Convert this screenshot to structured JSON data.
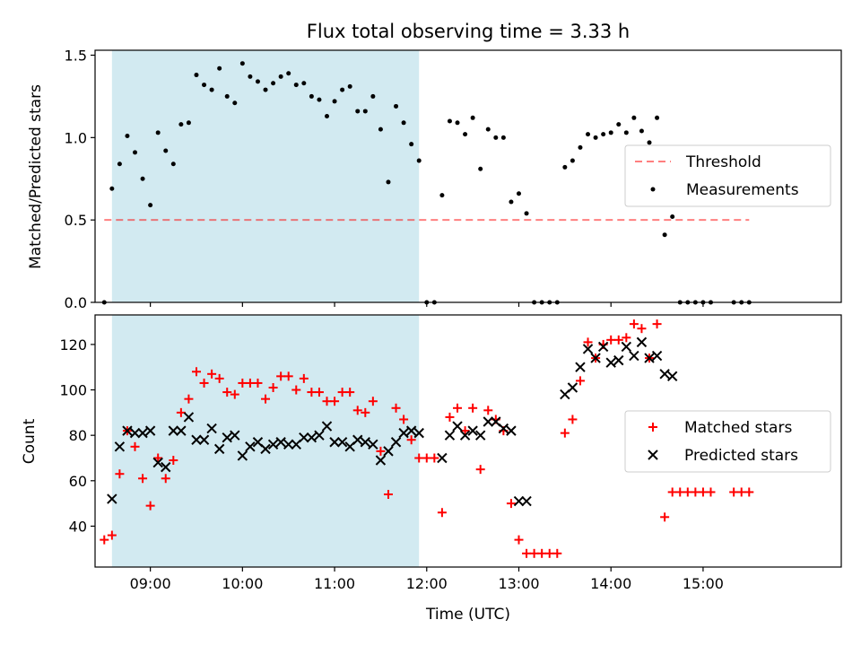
{
  "title": "Flux total observing time = 3.33 h",
  "colors": {
    "band": "#add8e6",
    "threshold": "#ff0000",
    "measurement": "#000000",
    "matched": "#ff0000",
    "predicted": "#000000"
  },
  "chart_data": [
    {
      "type": "scatter",
      "ylabel": "Matched/Predicted stars",
      "ylim": [
        0,
        1.53
      ],
      "xlim": [
        "08:24",
        "16:30"
      ],
      "yticks": [
        "0.0",
        "0.5",
        "1.0",
        "1.5"
      ],
      "shaded_interval": [
        "08:35",
        "11:55"
      ],
      "legend": {
        "position": "center-right",
        "entries": [
          "Threshold",
          "Measurements"
        ]
      },
      "threshold": {
        "name": "Threshold",
        "value": 0.5,
        "x": [
          "08:30",
          "15:30"
        ]
      },
      "series": [
        {
          "name": "Measurements",
          "points": [
            [
              "08:30",
              0.0
            ],
            [
              "08:35",
              0.69
            ],
            [
              "08:40",
              0.84
            ],
            [
              "08:45",
              1.01
            ],
            [
              "08:50",
              0.91
            ],
            [
              "08:55",
              0.75
            ],
            [
              "09:00",
              0.59
            ],
            [
              "09:05",
              1.03
            ],
            [
              "09:10",
              0.92
            ],
            [
              "09:15",
              0.84
            ],
            [
              "09:20",
              1.08
            ],
            [
              "09:25",
              1.09
            ],
            [
              "09:30",
              1.38
            ],
            [
              "09:35",
              1.32
            ],
            [
              "09:40",
              1.29
            ],
            [
              "09:45",
              1.42
            ],
            [
              "09:50",
              1.25
            ],
            [
              "09:55",
              1.21
            ],
            [
              "10:00",
              1.45
            ],
            [
              "10:05",
              1.37
            ],
            [
              "10:10",
              1.34
            ],
            [
              "10:15",
              1.29
            ],
            [
              "10:20",
              1.33
            ],
            [
              "10:25",
              1.37
            ],
            [
              "10:30",
              1.39
            ],
            [
              "10:35",
              1.32
            ],
            [
              "10:40",
              1.33
            ],
            [
              "10:45",
              1.25
            ],
            [
              "10:50",
              1.23
            ],
            [
              "10:55",
              1.13
            ],
            [
              "11:00",
              1.22
            ],
            [
              "11:05",
              1.29
            ],
            [
              "11:10",
              1.31
            ],
            [
              "11:15",
              1.16
            ],
            [
              "11:20",
              1.16
            ],
            [
              "11:25",
              1.25
            ],
            [
              "11:30",
              1.05
            ],
            [
              "11:35",
              0.73
            ],
            [
              "11:40",
              1.19
            ],
            [
              "11:45",
              1.09
            ],
            [
              "11:50",
              0.96
            ],
            [
              "11:55",
              0.86
            ],
            [
              "12:00",
              0.0
            ],
            [
              "12:05",
              0.0
            ],
            [
              "12:10",
              0.65
            ],
            [
              "12:15",
              1.1
            ],
            [
              "12:20",
              1.09
            ],
            [
              "12:25",
              1.02
            ],
            [
              "12:30",
              1.12
            ],
            [
              "12:35",
              0.81
            ],
            [
              "12:40",
              1.05
            ],
            [
              "12:45",
              1.0
            ],
            [
              "12:50",
              1.0
            ],
            [
              "12:55",
              0.61
            ],
            [
              "13:00",
              0.66
            ],
            [
              "13:05",
              0.54
            ],
            [
              "13:10",
              0.0
            ],
            [
              "13:15",
              0.0
            ],
            [
              "13:20",
              0.0
            ],
            [
              "13:25",
              0.0
            ],
            [
              "13:30",
              0.82
            ],
            [
              "13:35",
              0.86
            ],
            [
              "13:40",
              0.94
            ],
            [
              "13:45",
              1.02
            ],
            [
              "13:50",
              1.0
            ],
            [
              "13:55",
              1.02
            ],
            [
              "14:00",
              1.03
            ],
            [
              "14:05",
              1.08
            ],
            [
              "14:10",
              1.03
            ],
            [
              "14:15",
              1.12
            ],
            [
              "14:20",
              1.04
            ],
            [
              "14:25",
              0.97
            ],
            [
              "14:30",
              1.12
            ],
            [
              "14:35",
              0.41
            ],
            [
              "14:40",
              0.52
            ],
            [
              "14:45",
              0.0
            ],
            [
              "14:50",
              0.0
            ],
            [
              "14:55",
              0.0
            ],
            [
              "15:00",
              0.0
            ],
            [
              "15:05",
              0.0
            ],
            [
              "15:20",
              0.0
            ],
            [
              "15:25",
              0.0
            ],
            [
              "15:30",
              0.0
            ]
          ]
        }
      ]
    },
    {
      "type": "scatter",
      "xlabel": "Time (UTC)",
      "ylabel": "Count",
      "ylim": [
        22,
        133
      ],
      "xlim": [
        "08:24",
        "16:30"
      ],
      "yticks": [
        "40",
        "60",
        "80",
        "100",
        "120"
      ],
      "xticks": [
        "09:00",
        "10:00",
        "11:00",
        "12:00",
        "13:00",
        "14:00",
        "15:00"
      ],
      "shaded_interval": [
        "08:35",
        "11:55"
      ],
      "legend": {
        "position": "center-right",
        "entries": [
          "Matched stars",
          "Predicted stars"
        ]
      },
      "series": [
        {
          "name": "Matched stars",
          "marker": "plus",
          "points": [
            [
              "08:30",
              34
            ],
            [
              "08:35",
              36
            ],
            [
              "08:40",
              63
            ],
            [
              "08:45",
              82
            ],
            [
              "08:50",
              75
            ],
            [
              "08:55",
              61
            ],
            [
              "09:00",
              49
            ],
            [
              "09:05",
              70
            ],
            [
              "09:10",
              61
            ],
            [
              "09:15",
              69
            ],
            [
              "09:20",
              90
            ],
            [
              "09:25",
              96
            ],
            [
              "09:30",
              108
            ],
            [
              "09:35",
              103
            ],
            [
              "09:40",
              107
            ],
            [
              "09:45",
              105
            ],
            [
              "09:50",
              99
            ],
            [
              "09:55",
              98
            ],
            [
              "10:00",
              103
            ],
            [
              "10:05",
              103
            ],
            [
              "10:10",
              103
            ],
            [
              "10:15",
              96
            ],
            [
              "10:20",
              101
            ],
            [
              "10:25",
              106
            ],
            [
              "10:30",
              106
            ],
            [
              "10:35",
              100
            ],
            [
              "10:40",
              105
            ],
            [
              "10:45",
              99
            ],
            [
              "10:50",
              99
            ],
            [
              "10:55",
              95
            ],
            [
              "11:00",
              95
            ],
            [
              "11:05",
              99
            ],
            [
              "11:10",
              99
            ],
            [
              "11:15",
              91
            ],
            [
              "11:20",
              90
            ],
            [
              "11:25",
              95
            ],
            [
              "11:30",
              73
            ],
            [
              "11:35",
              54
            ],
            [
              "11:40",
              92
            ],
            [
              "11:45",
              87
            ],
            [
              "11:50",
              78
            ],
            [
              "11:55",
              70
            ],
            [
              "12:00",
              70
            ],
            [
              "12:05",
              70
            ],
            [
              "12:10",
              46
            ],
            [
              "12:15",
              88
            ],
            [
              "12:20",
              92
            ],
            [
              "12:25",
              82
            ],
            [
              "12:30",
              92
            ],
            [
              "12:35",
              65
            ],
            [
              "12:40",
              91
            ],
            [
              "12:45",
              87
            ],
            [
              "12:50",
              82
            ],
            [
              "12:55",
              50
            ],
            [
              "13:00",
              34
            ],
            [
              "13:05",
              28
            ],
            [
              "13:10",
              28
            ],
            [
              "13:15",
              28
            ],
            [
              "13:20",
              28
            ],
            [
              "13:25",
              28
            ],
            [
              "13:30",
              81
            ],
            [
              "13:35",
              87
            ],
            [
              "13:40",
              104
            ],
            [
              "13:45",
              121
            ],
            [
              "13:50",
              114
            ],
            [
              "13:55",
              120
            ],
            [
              "14:00",
              122
            ],
            [
              "14:05",
              122
            ],
            [
              "14:10",
              123
            ],
            [
              "14:15",
              129
            ],
            [
              "14:20",
              127
            ],
            [
              "14:25",
              114
            ],
            [
              "14:30",
              129
            ],
            [
              "14:35",
              44
            ],
            [
              "14:40",
              55
            ],
            [
              "14:45",
              55
            ],
            [
              "14:50",
              55
            ],
            [
              "14:55",
              55
            ],
            [
              "15:00",
              55
            ],
            [
              "15:05",
              55
            ],
            [
              "15:20",
              55
            ],
            [
              "15:25",
              55
            ],
            [
              "15:30",
              55
            ]
          ]
        },
        {
          "name": "Predicted stars",
          "marker": "x",
          "points": [
            [
              "08:35",
              52
            ],
            [
              "08:40",
              75
            ],
            [
              "08:45",
              82
            ],
            [
              "08:50",
              81
            ],
            [
              "08:55",
              81
            ],
            [
              "09:00",
              82
            ],
            [
              "09:05",
              68
            ],
            [
              "09:10",
              66
            ],
            [
              "09:15",
              82
            ],
            [
              "09:20",
              82
            ],
            [
              "09:25",
              88
            ],
            [
              "09:30",
              78
            ],
            [
              "09:35",
              78
            ],
            [
              "09:40",
              83
            ],
            [
              "09:45",
              74
            ],
            [
              "09:50",
              79
            ],
            [
              "09:55",
              80
            ],
            [
              "10:00",
              71
            ],
            [
              "10:05",
              75
            ],
            [
              "10:10",
              77
            ],
            [
              "10:15",
              74
            ],
            [
              "10:20",
              76
            ],
            [
              "10:25",
              77
            ],
            [
              "10:30",
              76
            ],
            [
              "10:35",
              76
            ],
            [
              "10:40",
              79
            ],
            [
              "10:45",
              79
            ],
            [
              "10:50",
              80
            ],
            [
              "10:55",
              84
            ],
            [
              "11:00",
              77
            ],
            [
              "11:05",
              77
            ],
            [
              "11:10",
              75
            ],
            [
              "11:15",
              78
            ],
            [
              "11:20",
              77
            ],
            [
              "11:25",
              76
            ],
            [
              "11:30",
              69
            ],
            [
              "11:35",
              73
            ],
            [
              "11:40",
              77
            ],
            [
              "11:45",
              81
            ],
            [
              "11:50",
              82
            ],
            [
              "11:55",
              81
            ],
            [
              "12:10",
              70
            ],
            [
              "12:15",
              80
            ],
            [
              "12:20",
              84
            ],
            [
              "12:25",
              80
            ],
            [
              "12:30",
              82
            ],
            [
              "12:35",
              80
            ],
            [
              "12:40",
              86
            ],
            [
              "12:45",
              86
            ],
            [
              "12:50",
              83
            ],
            [
              "12:55",
              82
            ],
            [
              "13:00",
              51
            ],
            [
              "13:05",
              51
            ],
            [
              "13:30",
              98
            ],
            [
              "13:35",
              101
            ],
            [
              "13:40",
              110
            ],
            [
              "13:45",
              118
            ],
            [
              "13:50",
              114
            ],
            [
              "13:55",
              119
            ],
            [
              "14:00",
              112
            ],
            [
              "14:05",
              113
            ],
            [
              "14:10",
              119
            ],
            [
              "14:15",
              115
            ],
            [
              "14:20",
              121
            ],
            [
              "14:25",
              114
            ],
            [
              "14:30",
              115
            ],
            [
              "14:35",
              107
            ],
            [
              "14:40",
              106
            ]
          ]
        }
      ]
    }
  ]
}
